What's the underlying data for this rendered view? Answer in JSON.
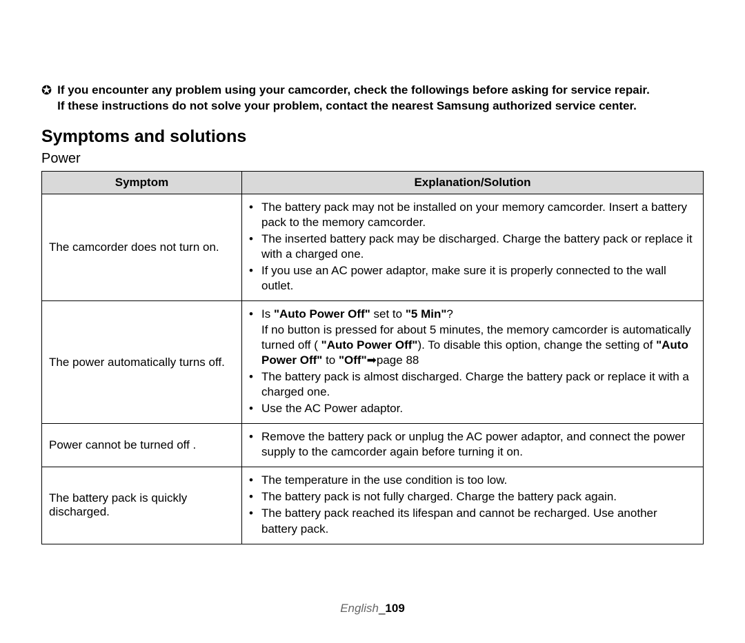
{
  "intro": {
    "line1": "If you encounter any problem using your camcorder, check the followings before asking for service repair.",
    "line2": "If these instructions do not solve your problem, contact the nearest Samsung authorized service center."
  },
  "heading": "Symptoms and solutions",
  "subheading": "Power",
  "table": {
    "headers": {
      "symptom": "Symptom",
      "explanation": "Explanation/Solution"
    },
    "rows": [
      {
        "symptom": "The camcorder does not turn on.",
        "bullets": [
          "The battery pack may not be installed on your memory camcorder. Insert a battery pack to the memory camcorder.",
          "The inserted battery pack may be discharged. Charge the battery pack or replace it with a charged one.",
          "If you use an AC power adaptor, make sure it is properly connected to the wall outlet."
        ]
      },
      {
        "symptom": "The power automatically turns off.",
        "bullets_special": {
          "b1_pre": "Is ",
          "b1_bold1": "\"Auto Power Off\"",
          "b1_mid": " set to ",
          "b1_bold2": "\"5 Min\"",
          "b1_post": "?",
          "b1_line2a": "If no button is pressed for about 5 minutes, the memory camcorder is automatically turned off ( ",
          "b1_line2_bold": "\"Auto Power Off\"",
          "b1_line2b": "). To disable this option, change the setting of ",
          "b1_line2_bold2": "\"Auto Power Off\"",
          "b1_line2c": " to ",
          "b1_line2_bold3": "\"Off\"",
          "b1_line2d": " ➡page 88",
          "b2": "The battery pack is almost discharged. Charge the battery pack or replace it with a charged one.",
          "b3": "Use the AC Power adaptor."
        }
      },
      {
        "symptom": "Power cannot be turned off .",
        "bullets": [
          "Remove the battery pack or unplug the AC power adaptor, and connect the power supply to the camcorder again before turning it on."
        ]
      },
      {
        "symptom": "The battery pack is quickly discharged.",
        "bullets": [
          "The temperature in the use condition is too low.",
          "The battery pack is not fully charged. Charge the battery pack again.",
          "The battery pack reached its lifespan and cannot be recharged. Use another battery pack."
        ]
      }
    ]
  },
  "footer": {
    "lang": "English",
    "sep": "_",
    "page": "109"
  },
  "colors": {
    "header_bg": "#d9d9d9",
    "border": "#000000",
    "text": "#000000",
    "footer_lang": "#666666"
  }
}
